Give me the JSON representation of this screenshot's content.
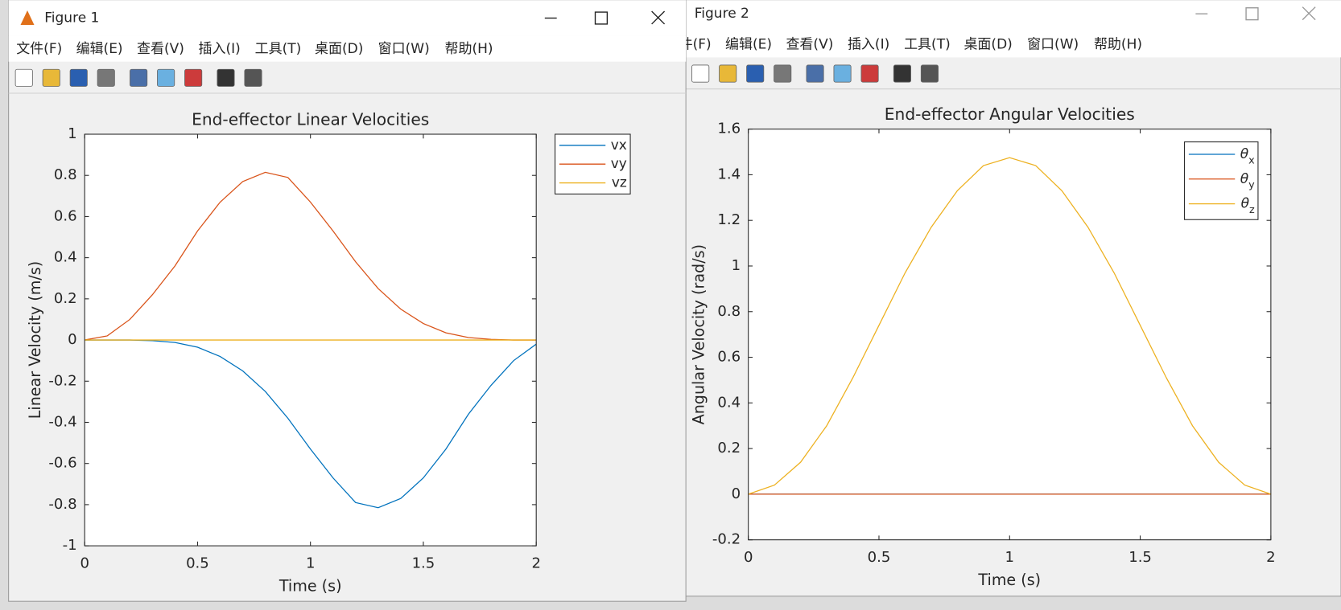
{
  "windows": [
    {
      "title": "Figure 1",
      "menu": [
        "文件(F)",
        "编辑(E)",
        "查看(V)",
        "插入(I)",
        "工具(T)",
        "桌面(D)",
        "窗口(W)",
        "帮助(H)"
      ]
    },
    {
      "title": "Figure 2",
      "menu": [
        "文件(F)",
        "编辑(E)",
        "查看(V)",
        "插入(I)",
        "工具(T)",
        "桌面(D)",
        "窗口(W)",
        "帮助(H)"
      ]
    }
  ],
  "chart_data": [
    {
      "type": "line",
      "title": "End-effector Linear Velocities",
      "xlabel": "Time (s)",
      "ylabel": "Linear Velocity (m/s)",
      "x": [
        0,
        0.1,
        0.2,
        0.3,
        0.4,
        0.5,
        0.6,
        0.7,
        0.8,
        0.9,
        1,
        1.1,
        1.2,
        1.3,
        1.4,
        1.5,
        1.6,
        1.7,
        1.8,
        1.9,
        2
      ],
      "series": [
        {
          "name": "vx",
          "color": "#0072bd",
          "values": [
            0,
            0,
            0,
            -0.003,
            -0.012,
            -0.035,
            -0.08,
            -0.15,
            -0.25,
            -0.38,
            -0.53,
            -0.67,
            -0.79,
            -0.815,
            -0.77,
            -0.67,
            -0.53,
            -0.36,
            -0.22,
            -0.1,
            -0.02
          ]
        },
        {
          "name": "vy",
          "color": "#d95319",
          "values": [
            0,
            0.02,
            0.1,
            0.22,
            0.36,
            0.53,
            0.67,
            0.77,
            0.815,
            0.79,
            0.67,
            0.53,
            0.38,
            0.25,
            0.15,
            0.08,
            0.035,
            0.012,
            0.003,
            0,
            0
          ]
        },
        {
          "name": "vz",
          "color": "#edb120",
          "values": [
            0,
            0,
            0,
            0,
            0,
            0,
            0,
            0,
            0,
            0,
            0,
            0,
            0,
            0,
            0,
            0,
            0,
            0,
            0,
            0,
            0
          ]
        }
      ],
      "xlim": [
        0,
        2
      ],
      "ylim": [
        -1,
        1
      ],
      "xticks": [
        0,
        0.5,
        1,
        1.5,
        2
      ],
      "yticks": [
        -1,
        -0.8,
        -0.6,
        -0.4,
        -0.2,
        0,
        0.2,
        0.4,
        0.6,
        0.8,
        1
      ],
      "legend": "northeastoutside"
    },
    {
      "type": "line",
      "title": "End-effector Angular Velocities",
      "xlabel": "Time (s)",
      "ylabel": "Angular Velocity (rad/s)",
      "x": [
        0,
        0.1,
        0.2,
        0.3,
        0.4,
        0.5,
        0.6,
        0.7,
        0.8,
        0.9,
        1,
        1.1,
        1.2,
        1.3,
        1.4,
        1.5,
        1.6,
        1.7,
        1.8,
        1.9,
        2
      ],
      "series": [
        {
          "name": "θx",
          "color": "#0072bd",
          "values": [
            0,
            0,
            0,
            0,
            0,
            0,
            0,
            0,
            0,
            0,
            0,
            0,
            0,
            0,
            0,
            0,
            0,
            0,
            0,
            0,
            0
          ]
        },
        {
          "name": "θy",
          "color": "#d95319",
          "values": [
            0,
            0,
            0,
            0,
            0,
            0,
            0,
            0,
            0,
            0,
            0,
            0,
            0,
            0,
            0,
            0,
            0,
            0,
            0,
            0,
            0
          ]
        },
        {
          "name": "θz",
          "color": "#edb120",
          "values": [
            0,
            0.04,
            0.14,
            0.3,
            0.51,
            0.74,
            0.97,
            1.17,
            1.33,
            1.44,
            1.475,
            1.44,
            1.33,
            1.17,
            0.97,
            0.74,
            0.51,
            0.3,
            0.14,
            0.04,
            0
          ]
        }
      ],
      "xlim": [
        0,
        2
      ],
      "ylim": [
        -0.2,
        1.6
      ],
      "xticks": [
        0,
        0.5,
        1,
        1.5,
        2
      ],
      "yticks": [
        -0.2,
        0,
        0.2,
        0.4,
        0.6,
        0.8,
        1,
        1.2,
        1.4,
        1.6
      ],
      "legend": "northeast"
    }
  ]
}
